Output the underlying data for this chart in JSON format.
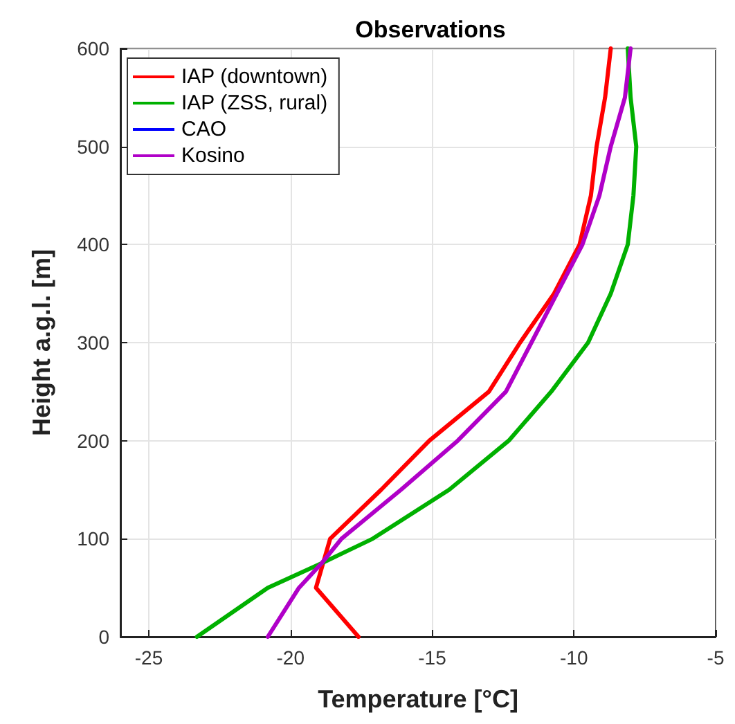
{
  "chart_data": {
    "type": "line",
    "title": "Observations",
    "xlabel": "Temperature [°C]",
    "ylabel": "Height a.g.l. [m]",
    "xlim": [
      -26,
      -5
    ],
    "xticks": [
      -25,
      -20,
      -15,
      -10,
      -5
    ],
    "ylim": [
      0,
      600
    ],
    "yticks": [
      0,
      100,
      200,
      300,
      400,
      500,
      600
    ],
    "grid": true,
    "legend": "top left",
    "marker": "none",
    "line_style": "solid",
    "series": [
      {
        "name": "IAP (downtown)",
        "color": "#ff0000",
        "x": [
          -17.6,
          -19.1,
          -18.6,
          -16.8,
          -15.1,
          -13.0,
          -11.9,
          -10.7,
          -9.8,
          -9.4,
          -9.2,
          -8.9,
          -8.7
        ],
        "values": [
          0,
          50,
          100,
          150,
          200,
          250,
          300,
          350,
          400,
          450,
          500,
          550,
          600
        ]
      },
      {
        "name": "IAP (ZSS, rural)",
        "color": "#00b000",
        "x": [
          -23.3,
          -20.8,
          -18.9,
          -17.1,
          -14.4,
          -12.3,
          -10.8,
          -9.5,
          -8.7,
          -8.1,
          -7.9,
          -7.8,
          -8.0,
          -8.1
        ],
        "values": [
          0,
          50,
          75,
          100,
          150,
          200,
          250,
          300,
          350,
          400,
          450,
          500,
          550,
          600
        ]
      },
      {
        "name": "CAO",
        "color": "#0000ff"
      },
      {
        "name": "Kosino",
        "color": "#b000c8",
        "x": [
          -20.8,
          -19.7,
          -18.9,
          -18.2,
          -16.1,
          -14.1,
          -12.4,
          -11.5,
          -10.6,
          -9.7,
          -9.1,
          -8.7,
          -8.2,
          -8.0
        ],
        "values": [
          0,
          50,
          75,
          100,
          150,
          200,
          250,
          300,
          350,
          400,
          450,
          500,
          550,
          600
        ]
      }
    ]
  }
}
